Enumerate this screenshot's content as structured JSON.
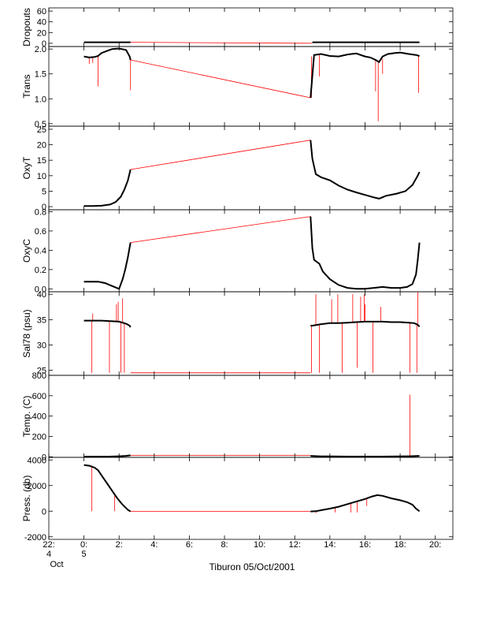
{
  "chart_data": {
    "type": "line",
    "title": "Tiburon 05/Oct/2001",
    "x_axis": {
      "unit": "hours relative to 00:00 on 5 Oct 2001",
      "range": [
        -2,
        21
      ],
      "ticks": [
        -2,
        0,
        2,
        4,
        6,
        8,
        10,
        12,
        14,
        16,
        18,
        20
      ],
      "tick_labels": [
        "22:",
        "0:",
        "2:",
        "4:",
        "6:",
        "8:",
        "10:",
        "12:",
        "14:",
        "16:",
        "18:",
        "20:"
      ],
      "day_labels": [
        {
          "x": -2,
          "text": "4"
        },
        {
          "x": 0,
          "text": "5"
        }
      ],
      "month_label": "Oct"
    },
    "colors": {
      "data": "#000000",
      "gap": "#ff0000"
    },
    "panels": [
      {
        "ylabel": "Dropouts",
        "ylim": [
          -6,
          66
        ],
        "yticks": [
          0,
          20,
          40,
          60
        ],
        "series": [
          {
            "role": "data",
            "x": [
              0,
              0.5,
              1,
              1.5,
              2,
              2.5,
              2.65
            ],
            "y": [
              2,
              2,
              2,
              2,
              2,
              2,
              2
            ]
          },
          {
            "role": "gap",
            "x": [
              2.65,
              13
            ],
            "y": [
              2,
              0
            ]
          },
          {
            "role": "data",
            "x": [
              13,
              14,
              15,
              16,
              17,
              18,
              19.1
            ],
            "y": [
              2,
              2,
              2,
              2,
              2,
              2,
              2
            ]
          }
        ],
        "spikes": []
      },
      {
        "ylabel": "Trans",
        "ylim": [
          0.45,
          2.05
        ],
        "yticks": [
          0.5,
          1.0,
          1.5,
          2.0
        ],
        "ytick_labels": [
          "0.5",
          "1.0",
          "1.5",
          "2.0"
        ],
        "series": [
          {
            "role": "data",
            "x": [
              0,
              0.3,
              0.6,
              0.8,
              1.0,
              1.3,
              1.6,
              2.0,
              2.4,
              2.6,
              2.65
            ],
            "y": [
              1.85,
              1.83,
              1.84,
              1.86,
              1.92,
              1.96,
              2.0,
              2.01,
              1.98,
              1.85,
              1.78
            ]
          },
          {
            "role": "gap",
            "x": [
              2.65,
              12.9
            ],
            "y": [
              1.78,
              1.02
            ]
          },
          {
            "role": "data",
            "x": [
              12.9,
              13.1,
              13.5,
              14,
              14.5,
              15,
              15.5,
              16,
              16.3,
              16.6,
              16.8,
              17.0,
              17.3,
              17.7,
              18,
              18.5,
              18.9,
              19.1
            ],
            "y": [
              1.02,
              1.88,
              1.9,
              1.86,
              1.85,
              1.89,
              1.91,
              1.85,
              1.83,
              1.78,
              1.74,
              1.85,
              1.9,
              1.92,
              1.93,
              1.9,
              1.88,
              1.86
            ]
          }
        ],
        "spikes": [
          {
            "x": 0.3,
            "from": 1.84,
            "to": 1.7
          },
          {
            "x": 0.5,
            "from": 1.84,
            "to": 1.72
          },
          {
            "x": 0.8,
            "from": 1.85,
            "to": 1.25
          },
          {
            "x": 2.65,
            "from": 1.82,
            "to": 1.17
          },
          {
            "x": 12.95,
            "from": 1.85,
            "to": 1.02
          },
          {
            "x": 13.4,
            "from": 1.88,
            "to": 1.45
          },
          {
            "x": 16.6,
            "from": 1.78,
            "to": 1.15
          },
          {
            "x": 16.75,
            "from": 1.74,
            "to": 0.55
          },
          {
            "x": 17.0,
            "from": 1.8,
            "to": 1.5
          },
          {
            "x": 19.05,
            "from": 1.86,
            "to": 1.12
          }
        ]
      },
      {
        "ylabel": "OxyT",
        "ylim": [
          -1,
          26
        ],
        "yticks": [
          0,
          5,
          10,
          15,
          20,
          25
        ],
        "series": [
          {
            "role": "data",
            "x": [
              0,
              0.5,
              1.0,
              1.5,
              1.8,
              2.1,
              2.3,
              2.5,
              2.65
            ],
            "y": [
              0.2,
              0.2,
              0.3,
              0.7,
              1.5,
              3.2,
              5.5,
              8.5,
              12.0
            ]
          },
          {
            "role": "gap",
            "x": [
              2.65,
              12.9
            ],
            "y": [
              12.0,
              21.5
            ]
          },
          {
            "role": "data",
            "x": [
              12.9,
              13.0,
              13.2,
              13.5,
              14,
              14.5,
              15,
              15.5,
              16,
              16.5,
              16.8,
              17.2,
              17.8,
              18.3,
              18.7,
              19.0,
              19.1
            ],
            "y": [
              21.5,
              15.5,
              10.5,
              9.5,
              8.5,
              6.8,
              5.5,
              4.6,
              3.8,
              3.0,
              2.6,
              3.5,
              4.2,
              5.0,
              7.0,
              10.0,
              11.2
            ]
          }
        ],
        "spikes": []
      },
      {
        "ylabel": "OxyC",
        "ylim": [
          -0.03,
          0.82
        ],
        "yticks": [
          0.0,
          0.2,
          0.4,
          0.6,
          0.8
        ],
        "ytick_labels": [
          "0.0",
          "0.2",
          "0.4",
          "0.6",
          "0.8"
        ],
        "series": [
          {
            "role": "data",
            "x": [
              0,
              0.8,
              1.2,
              1.6,
              2.0,
              2.2,
              2.35,
              2.5,
              2.65
            ],
            "y": [
              0.075,
              0.075,
              0.06,
              0.03,
              0.0,
              0.1,
              0.2,
              0.33,
              0.48
            ]
          },
          {
            "role": "gap",
            "x": [
              2.65,
              12.9
            ],
            "y": [
              0.48,
              0.75
            ]
          },
          {
            "role": "data",
            "x": [
              12.9,
              13.0,
              13.1,
              13.4,
              13.6,
              14,
              14.5,
              15,
              15.5,
              16,
              16.5,
              17.0,
              17.5,
              18,
              18.4,
              18.7,
              18.9,
              19.0,
              19.1
            ],
            "y": [
              0.75,
              0.42,
              0.3,
              0.26,
              0.18,
              0.1,
              0.04,
              0.01,
              0.0,
              0.0,
              0.01,
              0.02,
              0.01,
              0.01,
              0.02,
              0.05,
              0.15,
              0.3,
              0.48
            ]
          }
        ],
        "spikes": []
      },
      {
        "ylabel": "Sal78 (psu)",
        "ylim": [
          24,
          40.5
        ],
        "yticks": [
          25,
          30,
          35,
          40
        ],
        "series": [
          {
            "role": "data",
            "x": [
              0,
              0.5,
              1.0,
              1.5,
              2.0,
              2.4,
              2.6,
              2.65
            ],
            "y": [
              34.8,
              34.8,
              34.8,
              34.7,
              34.6,
              34.2,
              33.8,
              33.5
            ]
          },
          {
            "role": "gap",
            "x": [
              2.65,
              12.9
            ],
            "y": [
              24.5,
              24.5
            ]
          },
          {
            "role": "data",
            "x": [
              12.9,
              13.0,
              13.5,
              14,
              14.5,
              15,
              15.5,
              16,
              16.5,
              17,
              17.5,
              18,
              18.5,
              18.8,
              19.0,
              19.1
            ],
            "y": [
              33.8,
              33.8,
              34.1,
              34.3,
              34.3,
              34.4,
              34.5,
              34.6,
              34.6,
              34.6,
              34.5,
              34.5,
              34.4,
              34.3,
              34.0,
              33.6
            ]
          }
        ],
        "spikes": [
          {
            "x": 0.45,
            "from": 34.8,
            "to": 24.5
          },
          {
            "x": 0.5,
            "from": 34.8,
            "to": 36.2
          },
          {
            "x": 1.45,
            "from": 34.7,
            "to": 24.5
          },
          {
            "x": 1.85,
            "from": 34.7,
            "to": 38.0
          },
          {
            "x": 1.95,
            "from": 34.6,
            "to": 38.5
          },
          {
            "x": 2.1,
            "from": 34.6,
            "to": 24.5
          },
          {
            "x": 2.2,
            "from": 34.5,
            "to": 39.2
          },
          {
            "x": 2.3,
            "from": 34.4,
            "to": 24.5
          },
          {
            "x": 12.95,
            "from": 34.0,
            "to": 24.5
          },
          {
            "x": 13.2,
            "from": 34.0,
            "to": 40.0
          },
          {
            "x": 13.4,
            "from": 34.1,
            "to": 24.5
          },
          {
            "x": 14.1,
            "from": 34.3,
            "to": 39.0
          },
          {
            "x": 14.45,
            "from": 34.3,
            "to": 40.0
          },
          {
            "x": 14.7,
            "from": 34.3,
            "to": 24.5
          },
          {
            "x": 15.3,
            "from": 34.4,
            "to": 40.0
          },
          {
            "x": 15.55,
            "from": 34.5,
            "to": 25.5
          },
          {
            "x": 15.75,
            "from": 34.5,
            "to": 39.5
          },
          {
            "x": 15.95,
            "from": 34.6,
            "to": 40.0
          },
          {
            "x": 16.0,
            "from": 34.6,
            "to": 38.0
          },
          {
            "x": 16.45,
            "from": 34.6,
            "to": 24.5
          },
          {
            "x": 16.9,
            "from": 34.6,
            "to": 37.5
          },
          {
            "x": 18.55,
            "from": 34.4,
            "to": 24.5
          },
          {
            "x": 18.95,
            "from": 34.0,
            "to": 24.5
          },
          {
            "x": 19.0,
            "from": 34.0,
            "to": 40.5
          }
        ]
      },
      {
        "ylabel": "Temp. (C)",
        "ylim": [
          -5,
          800
        ],
        "yticks": [
          0,
          200,
          400,
          600,
          800
        ],
        "series": [
          {
            "role": "data",
            "x": [
              0,
              0.5,
              1.0,
              1.5,
              2.0,
              2.4,
              2.65
            ],
            "y": [
              2,
              2,
              2,
              3,
              6,
              10,
              15
            ]
          },
          {
            "role": "gap",
            "x": [
              2.65,
              12.9
            ],
            "y": [
              15,
              15
            ]
          },
          {
            "role": "data",
            "x": [
              12.9,
              13.5,
              14,
              15,
              16,
              17,
              18,
              18.5,
              19.1
            ],
            "y": [
              10,
              5,
              4,
              3,
              3,
              3,
              4,
              6,
              10
            ]
          }
        ],
        "spikes": [
          {
            "x": 18.55,
            "from": 6,
            "to": 610
          }
        ]
      },
      {
        "ylabel": "Press. (db)",
        "ylim": [
          -2200,
          4200
        ],
        "yticks": [
          -2000,
          0,
          2000,
          4000
        ],
        "series": [
          {
            "role": "data",
            "x": [
              0,
              0.3,
              0.6,
              0.8,
              1.0,
              1.3,
              1.6,
              1.9,
              2.2,
              2.5,
              2.65
            ],
            "y": [
              3600,
              3550,
              3400,
              3200,
              2800,
              2200,
              1600,
              1000,
              500,
              100,
              -20
            ]
          },
          {
            "role": "gap",
            "x": [
              2.65,
              12.9
            ],
            "y": [
              -20,
              -20
            ]
          },
          {
            "role": "data",
            "x": [
              12.9,
              13.2,
              13.6,
              14,
              14.5,
              15,
              15.5,
              16,
              16.4,
              16.7,
              17.0,
              17.5,
              18,
              18.4,
              18.7,
              18.9,
              19.1
            ],
            "y": [
              -20,
              0,
              100,
              200,
              350,
              550,
              750,
              950,
              1150,
              1250,
              1200,
              1000,
              850,
              700,
              500,
              200,
              0
            ]
          }
        ],
        "spikes": [
          {
            "x": 0.45,
            "from": 3550,
            "to": 0
          },
          {
            "x": 1.75,
            "from": 1200,
            "to": 0
          },
          {
            "x": 13.2,
            "from": 0,
            "to": -150
          },
          {
            "x": 14.3,
            "from": 300,
            "to": -100
          },
          {
            "x": 15.2,
            "from": 600,
            "to": -100
          },
          {
            "x": 15.55,
            "from": 750,
            "to": -100
          },
          {
            "x": 16.1,
            "from": 1000,
            "to": 400
          }
        ]
      }
    ]
  }
}
